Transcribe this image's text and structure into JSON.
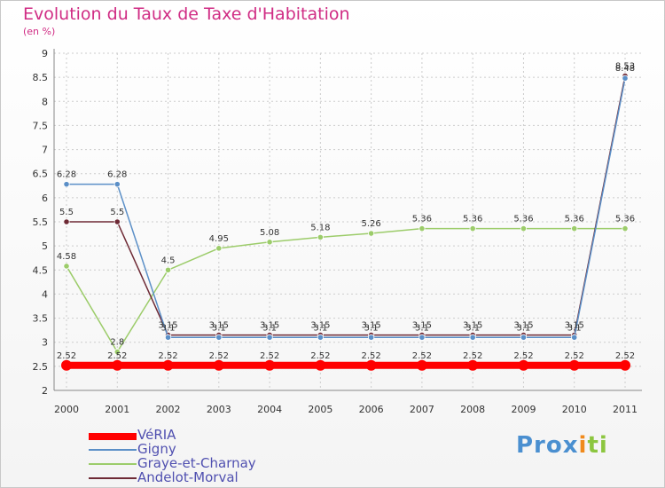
{
  "chart_data": {
    "type": "line",
    "title": "Evolution du Taux de Taxe d'Habitation",
    "subtitle": "(en %)",
    "xlabel": "",
    "ylabel": "",
    "x": [
      "2000",
      "2001",
      "2002",
      "2003",
      "2004",
      "2005",
      "2006",
      "2007",
      "2008",
      "2009",
      "2010",
      "2011"
    ],
    "ylim": [
      2,
      9
    ],
    "yticks": [
      "2",
      "2.5",
      "3",
      "3.5",
      "4",
      "4.5",
      "5",
      "5.5",
      "6",
      "6.5",
      "7",
      "7.5",
      "8",
      "8.5",
      "9"
    ],
    "grid": true,
    "legend_position": "bottom-left",
    "series": [
      {
        "name": "VéRIA",
        "color": "#ff0000",
        "values": [
          2.52,
          2.52,
          2.52,
          2.52,
          2.52,
          2.52,
          2.52,
          2.52,
          2.52,
          2.52,
          2.52,
          2.52
        ],
        "labels": [
          "2.52",
          "2.52",
          "2.52",
          "2.52",
          "2.52",
          "2.52",
          "2.52",
          "2.52",
          "2.52",
          "2.52",
          "2.52",
          "2.52"
        ]
      },
      {
        "name": "Gigny",
        "color": "#5b8fc7",
        "values": [
          6.28,
          6.28,
          3.1,
          3.1,
          3.1,
          3.1,
          3.1,
          3.1,
          3.1,
          3.1,
          3.1,
          8.48
        ],
        "labels": [
          "6.28",
          "6.28",
          "3.1",
          "3.1",
          "3.1",
          "3.1",
          "3.1",
          "3.1",
          "3.1",
          "3.1",
          "3.1",
          "8.48"
        ]
      },
      {
        "name": "Graye-et-Charnay",
        "color": "#9ccc6a",
        "values": [
          4.58,
          2.8,
          4.5,
          4.95,
          5.08,
          5.18,
          5.26,
          5.36,
          5.36,
          5.36,
          5.36,
          5.36
        ],
        "labels": [
          "4.58",
          "2.8",
          "4.5",
          "4.95",
          "5.08",
          "5.18",
          "5.26",
          "5.36",
          "5.36",
          "5.36",
          "5.36",
          "5.36"
        ]
      },
      {
        "name": "Andelot-Morval",
        "color": "#6e2a35",
        "values": [
          5.5,
          5.5,
          3.15,
          3.15,
          3.15,
          3.15,
          3.15,
          3.15,
          3.15,
          3.15,
          3.15,
          8.53
        ],
        "labels": [
          "5.5",
          "5.5",
          "3.15",
          "3.15",
          "3.15",
          "3.15",
          "3.15",
          "3.15",
          "3.15",
          "3.15",
          "3.15",
          "8.53"
        ]
      }
    ]
  },
  "logo": {
    "text": "Prox",
    "highlight": "i",
    "text2": "ti"
  }
}
